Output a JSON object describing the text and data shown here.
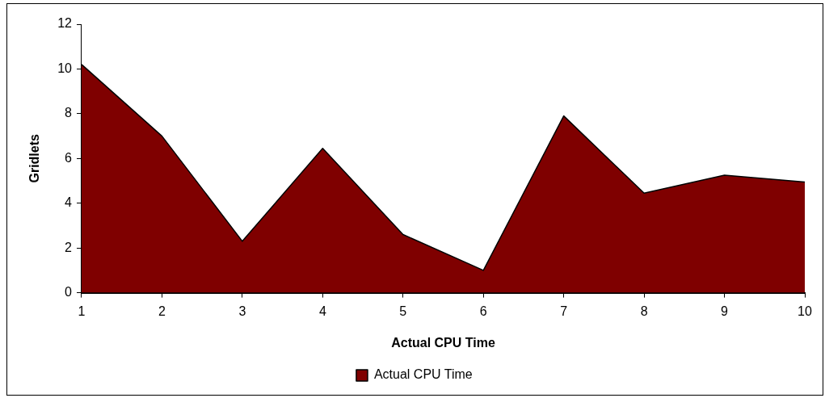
{
  "chart_data": {
    "type": "area",
    "xlabel": "Actual CPU Time",
    "ylabel": "Gridlets",
    "categories": [
      "1",
      "2",
      "3",
      "4",
      "5",
      "6",
      "7",
      "8",
      "9",
      "10"
    ],
    "series": [
      {
        "name": "Actual CPU Time",
        "color": "#7f0000",
        "values": [
          10.2,
          7.0,
          2.3,
          6.45,
          2.6,
          1.0,
          7.9,
          4.45,
          5.25,
          4.95
        ]
      }
    ],
    "ylim": [
      0,
      12
    ],
    "yticks": [
      0,
      2,
      4,
      6,
      8,
      10,
      12
    ],
    "grid": false,
    "legend": "bottom"
  }
}
